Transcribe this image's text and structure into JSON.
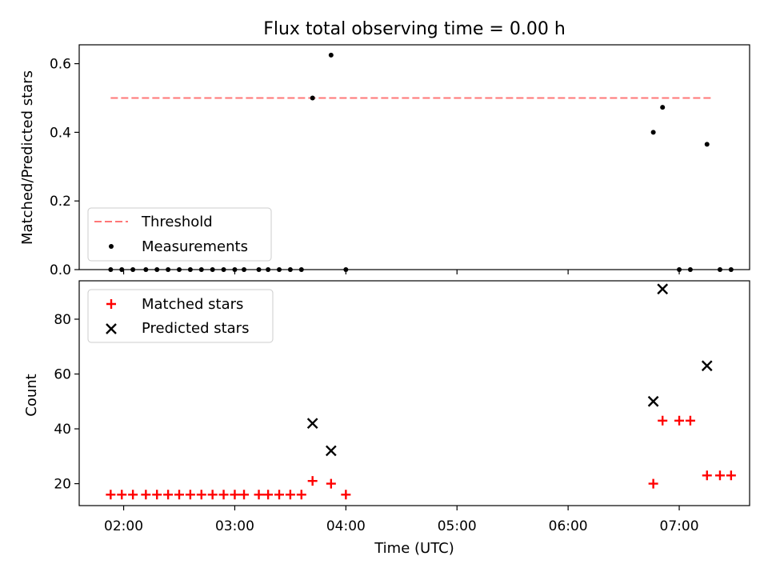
{
  "chart_data": [
    {
      "type": "scatter",
      "title": "Flux total observing time = 0.00 h",
      "xlabel": "",
      "ylabel": "Matched/Predicted stars",
      "xlim": [
        "01:36",
        "07:38"
      ],
      "ylim": [
        0,
        0.655
      ],
      "yticks": [
        0.0,
        0.2,
        0.4,
        0.6
      ],
      "ytick_labels": [
        "0.0",
        "0.2",
        "0.4",
        "0.6"
      ],
      "threshold": {
        "name": "Threshold",
        "y": 0.5,
        "x": [
          "01:53",
          "07:17"
        ],
        "color": "#ff7777"
      },
      "series": [
        {
          "name": "Measurements",
          "marker": "dot",
          "color": "#000000",
          "x": [
            "01:53",
            "01:59",
            "02:05",
            "02:12",
            "02:18",
            "02:24",
            "02:30",
            "02:36",
            "02:42",
            "02:48",
            "02:54",
            "03:00",
            "03:05",
            "03:13",
            "03:18",
            "03:24",
            "03:30",
            "03:36",
            "03:42",
            "03:52",
            "04:00",
            "06:46",
            "06:51",
            "07:00",
            "07:06",
            "07:15",
            "07:22",
            "07:28"
          ],
          "y": [
            0,
            0,
            0,
            0,
            0,
            0,
            0,
            0,
            0,
            0,
            0,
            0,
            0,
            0,
            0,
            0,
            0,
            0,
            0.5,
            0.625,
            0,
            0.4,
            0.473,
            0,
            0,
            0.365,
            0,
            0
          ]
        }
      ]
    },
    {
      "type": "scatter",
      "xlabel": "Time (UTC)",
      "ylabel": "Count",
      "xlim": [
        "01:36",
        "07:38"
      ],
      "ylim": [
        12,
        94
      ],
      "xticks": [
        "02:00",
        "03:00",
        "04:00",
        "05:00",
        "06:00",
        "07:00"
      ],
      "yticks": [
        20,
        40,
        60,
        80
      ],
      "series": [
        {
          "name": "Matched stars",
          "marker": "plus",
          "color": "#ff0000",
          "x": [
            "01:53",
            "01:59",
            "02:05",
            "02:12",
            "02:18",
            "02:24",
            "02:30",
            "02:36",
            "02:42",
            "02:48",
            "02:54",
            "03:00",
            "03:05",
            "03:13",
            "03:18",
            "03:24",
            "03:30",
            "03:36",
            "03:42",
            "03:52",
            "04:00",
            "06:46",
            "06:51",
            "07:00",
            "07:06",
            "07:15",
            "07:22",
            "07:28"
          ],
          "y": [
            16,
            16,
            16,
            16,
            16,
            16,
            16,
            16,
            16,
            16,
            16,
            16,
            16,
            16,
            16,
            16,
            16,
            16,
            21,
            20,
            16,
            20,
            43,
            43,
            43,
            23,
            23,
            23
          ]
        },
        {
          "name": "Predicted stars",
          "marker": "x",
          "color": "#000000",
          "x": [
            "03:42",
            "03:52",
            "06:46",
            "06:51",
            "07:15"
          ],
          "y": [
            42,
            32,
            50,
            91,
            63
          ]
        }
      ]
    }
  ]
}
